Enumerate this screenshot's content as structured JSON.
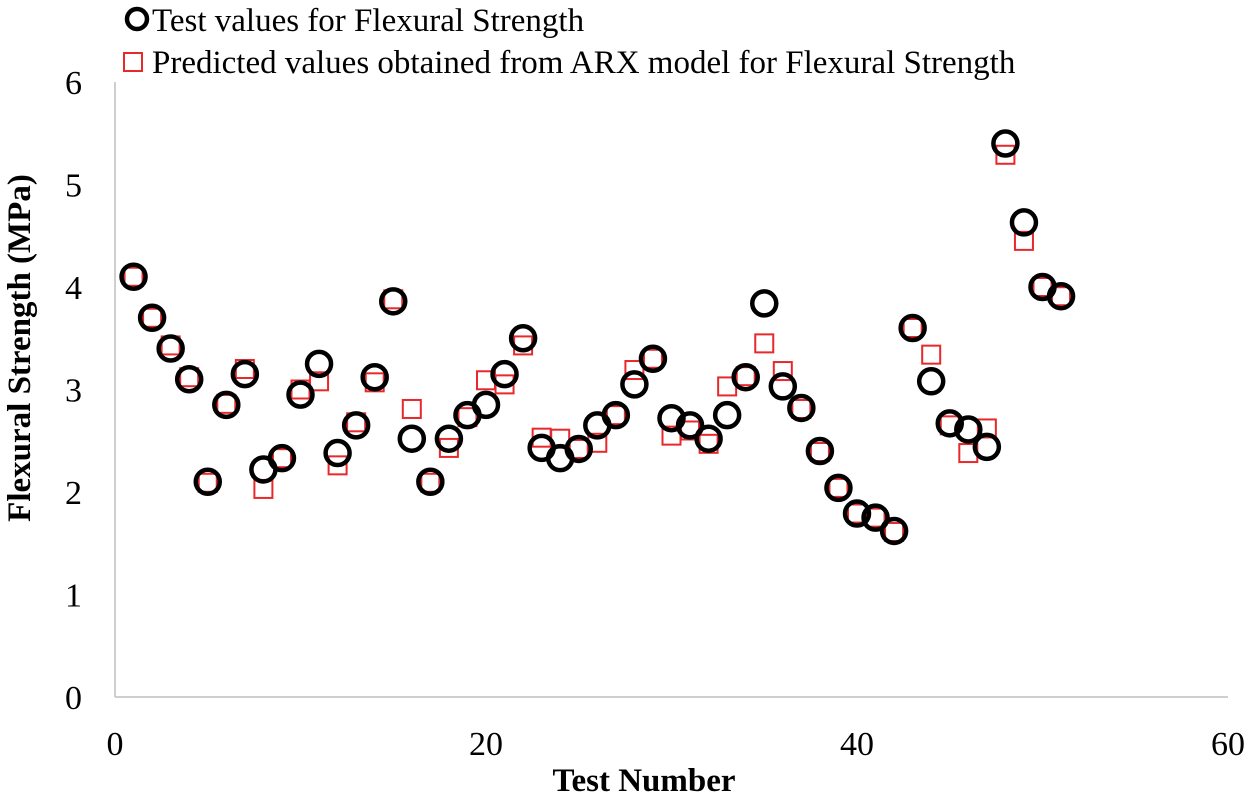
{
  "chart_data": {
    "type": "scatter",
    "xlabel": "Test Number",
    "ylabel": "Flexural Strength (MPa)",
    "xlim": [
      0,
      60
    ],
    "ylim": [
      0,
      6
    ],
    "xticks": [
      0,
      20,
      40,
      60
    ],
    "yticks": [
      0,
      1,
      2,
      3,
      4,
      5,
      6
    ],
    "grid": false,
    "legend_position": "top-left",
    "series": [
      {
        "name": "Test values for Flexural Strength",
        "marker": "circle",
        "color": "#000000",
        "x": [
          1,
          2,
          3,
          4,
          5,
          6,
          7,
          8,
          9,
          10,
          11,
          12,
          13,
          14,
          15,
          16,
          17,
          18,
          19,
          20,
          21,
          22,
          23,
          24,
          25,
          26,
          27,
          28,
          29,
          30,
          31,
          32,
          33,
          34,
          35,
          36,
          37,
          38,
          39,
          40,
          41,
          42,
          43,
          44,
          45,
          46,
          47,
          48,
          49,
          50,
          51
        ],
        "y": [
          4.1,
          3.7,
          3.4,
          3.1,
          2.1,
          2.85,
          3.15,
          2.22,
          2.33,
          2.95,
          3.25,
          2.38,
          2.65,
          3.12,
          3.86,
          2.52,
          2.1,
          2.52,
          2.75,
          2.85,
          3.15,
          3.5,
          2.43,
          2.33,
          2.42,
          2.65,
          2.75,
          3.05,
          3.3,
          2.72,
          2.65,
          2.52,
          2.75,
          3.12,
          3.84,
          3.03,
          2.82,
          2.4,
          2.04,
          1.79,
          1.75,
          1.62,
          3.6,
          3.08,
          2.67,
          2.61,
          2.44,
          5.4,
          4.63,
          4.0,
          3.91
        ]
      },
      {
        "name": "Predicted values obtained from ARX model for Flexural Strength",
        "marker": "square",
        "color": "#e8282b",
        "x": [
          1,
          2,
          3,
          4,
          5,
          6,
          7,
          8,
          9,
          10,
          11,
          12,
          13,
          14,
          15,
          16,
          17,
          18,
          19,
          20,
          21,
          22,
          23,
          24,
          25,
          26,
          27,
          28,
          29,
          30,
          31,
          32,
          33,
          34,
          35,
          36,
          37,
          38,
          39,
          40,
          41,
          42,
          43,
          44,
          45,
          46,
          47,
          48,
          49,
          50,
          51
        ],
        "y": [
          4.1,
          3.7,
          3.43,
          3.12,
          2.09,
          2.86,
          3.2,
          2.03,
          2.33,
          3.0,
          3.08,
          2.26,
          2.68,
          3.07,
          3.88,
          2.81,
          2.09,
          2.43,
          2.73,
          3.09,
          3.05,
          3.43,
          2.53,
          2.52,
          2.42,
          2.48,
          2.75,
          3.19,
          3.3,
          2.55,
          2.6,
          2.47,
          3.03,
          3.13,
          3.45,
          3.18,
          2.81,
          2.39,
          2.04,
          1.79,
          1.75,
          1.61,
          3.6,
          3.34,
          2.65,
          2.38,
          2.62,
          5.29,
          4.45,
          4.0,
          3.91
        ]
      }
    ]
  }
}
